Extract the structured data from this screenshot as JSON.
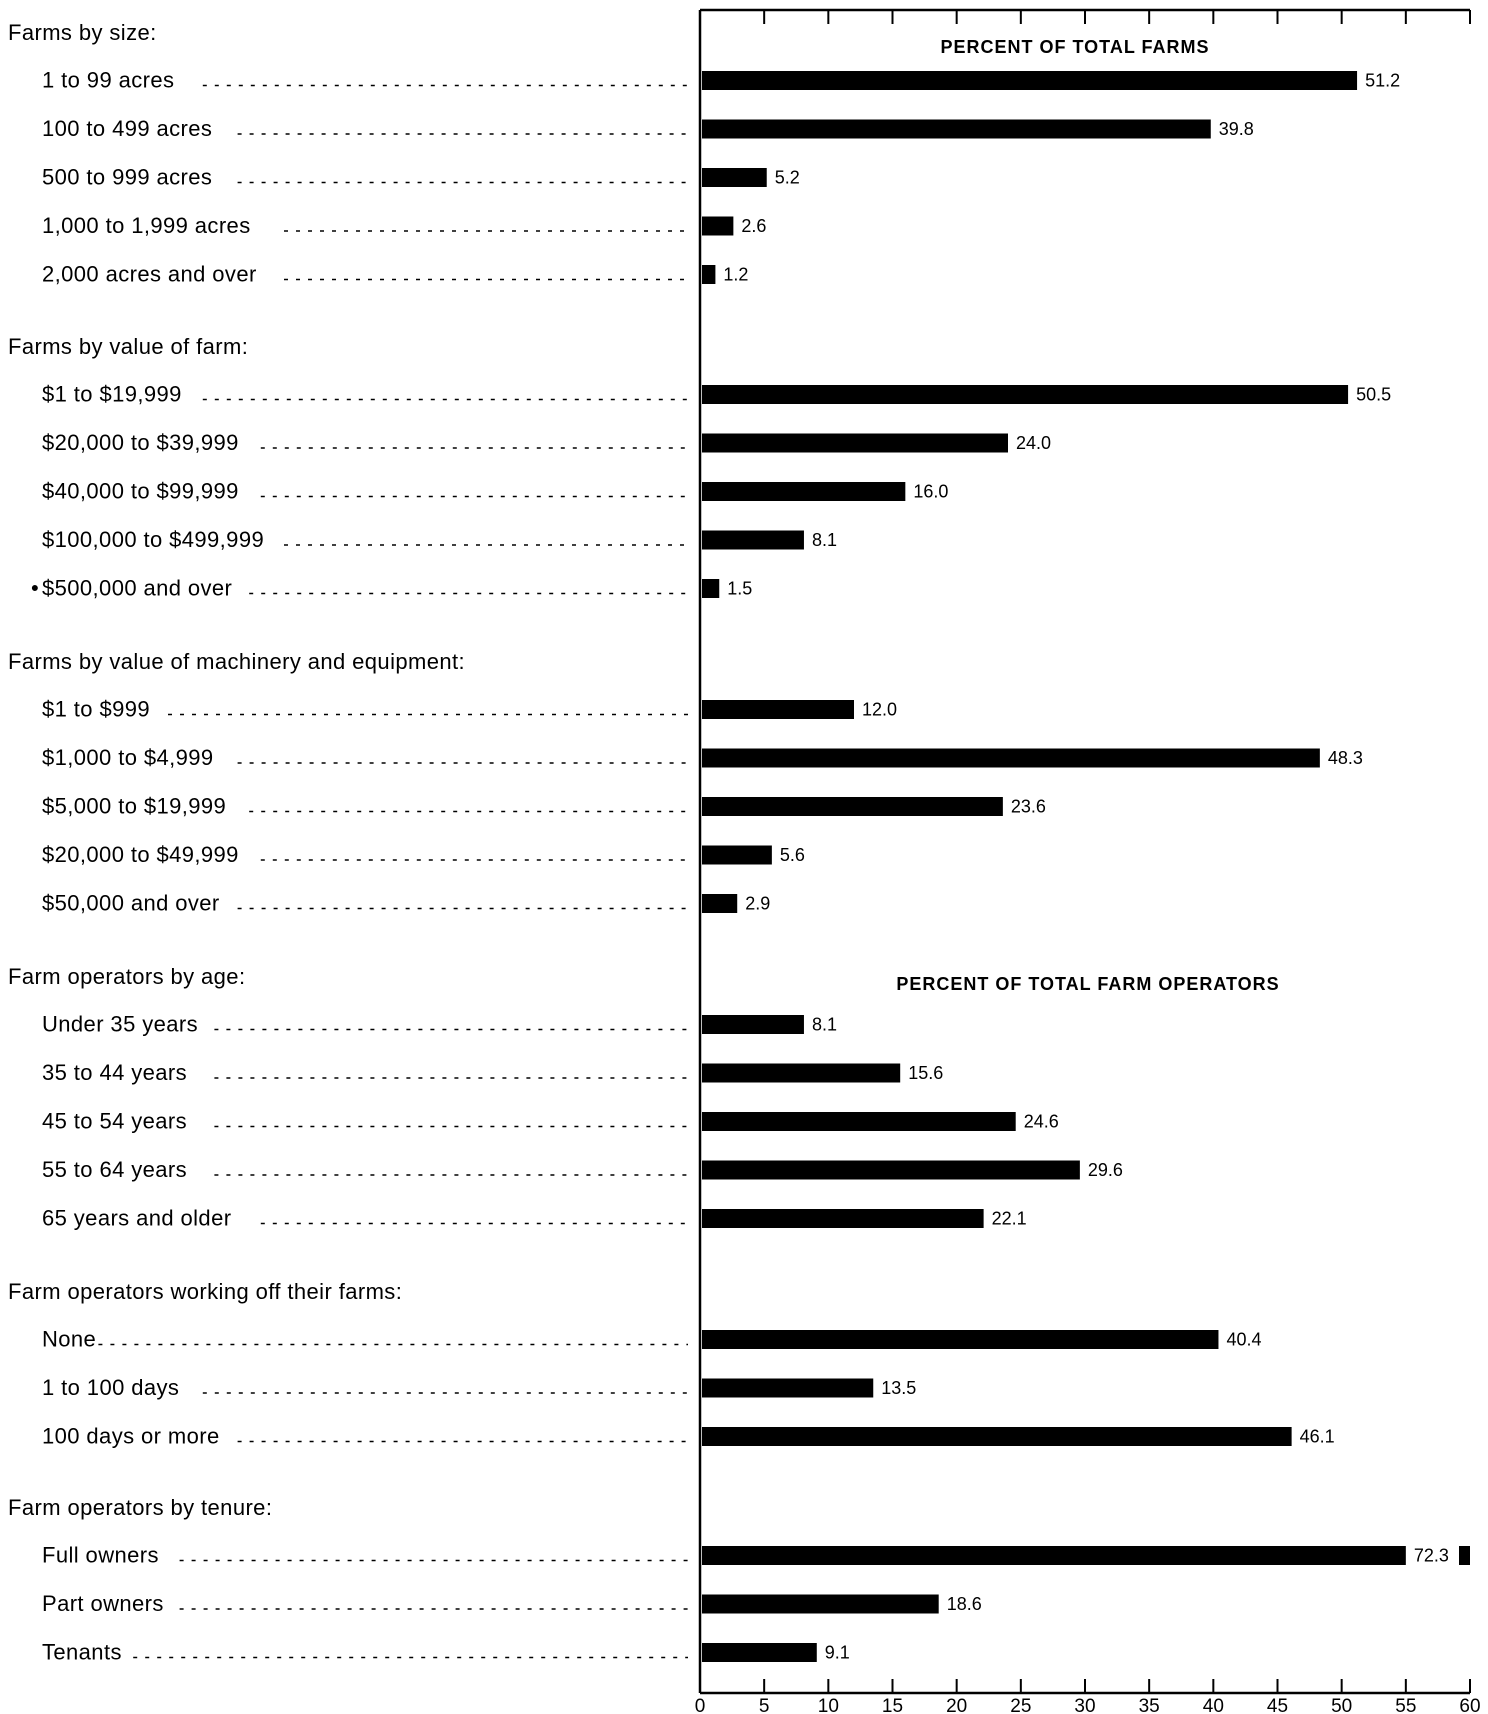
{
  "chart_data": {
    "type": "bar",
    "orientation": "horizontal",
    "xlim": [
      0,
      60
    ],
    "xticks": [
      0,
      5,
      10,
      15,
      20,
      25,
      30,
      35,
      40,
      45,
      50,
      55,
      60
    ],
    "grid": false,
    "groups": [
      {
        "label": "Farms by size:",
        "subtitle": "PERCENT OF TOTAL FARMS",
        "categories": [
          "1 to 99 acres",
          "100 to 499 acres",
          "500 to 999 acres",
          "1,000 to 1,999 acres",
          "2,000 acres and over"
        ],
        "values": [
          51.2,
          39.8,
          5.2,
          2.6,
          1.2
        ],
        "value_labels": [
          "51.2",
          "39.8",
          "5.2",
          "2.6",
          "1.2"
        ]
      },
      {
        "label": "Farms by value of farm:",
        "categories": [
          "$1 to $19,999",
          "$20,000 to $39,999",
          "$40,000 to $99,999",
          "$100,000 to $499,999",
          "$500,000 and over"
        ],
        "category_markers": [
          "",
          "",
          "",
          "",
          "•"
        ],
        "values": [
          50.5,
          24.0,
          16.0,
          8.1,
          1.5
        ],
        "value_labels": [
          "50.5",
          "24.0",
          "16.0",
          "8.1",
          "1.5"
        ]
      },
      {
        "label": "Farms by value of machinery and equipment:",
        "categories": [
          "$1 to $999",
          "$1,000 to $4,999",
          "$5,000 to $19,999",
          "$20,000 to $49,999",
          "$50,000 and over"
        ],
        "values": [
          12.0,
          48.3,
          23.6,
          5.6,
          2.9
        ],
        "value_labels": [
          "12.0",
          "48.3",
          "23.6",
          "5.6",
          "2.9"
        ]
      },
      {
        "label": "Farm operators by age:",
        "subtitle": "PERCENT OF TOTAL FARM OPERATORS",
        "categories": [
          "Under 35 years",
          "35 to 44 years",
          "45 to 54 years",
          "55 to 64 years",
          "65 years and older"
        ],
        "values": [
          8.1,
          15.6,
          24.6,
          29.6,
          22.1
        ],
        "value_labels": [
          "8.1",
          "15.6",
          "24.6",
          "29.6",
          "22.1"
        ]
      },
      {
        "label": "Farm operators working off their farms:",
        "categories": [
          "None",
          "1 to 100 days",
          "100 days or more"
        ],
        "values": [
          40.4,
          13.5,
          46.1
        ],
        "value_labels": [
          "40.4",
          "13.5",
          "46.1"
        ]
      },
      {
        "label": "Farm operators by tenure:",
        "categories": [
          "Full owners",
          "Part owners",
          "Tenants"
        ],
        "values": [
          72.3,
          18.6,
          9.1
        ],
        "value_labels": [
          "72.3",
          "18.6",
          "9.1"
        ],
        "overflow_break": [
          true,
          false,
          false
        ]
      }
    ]
  }
}
